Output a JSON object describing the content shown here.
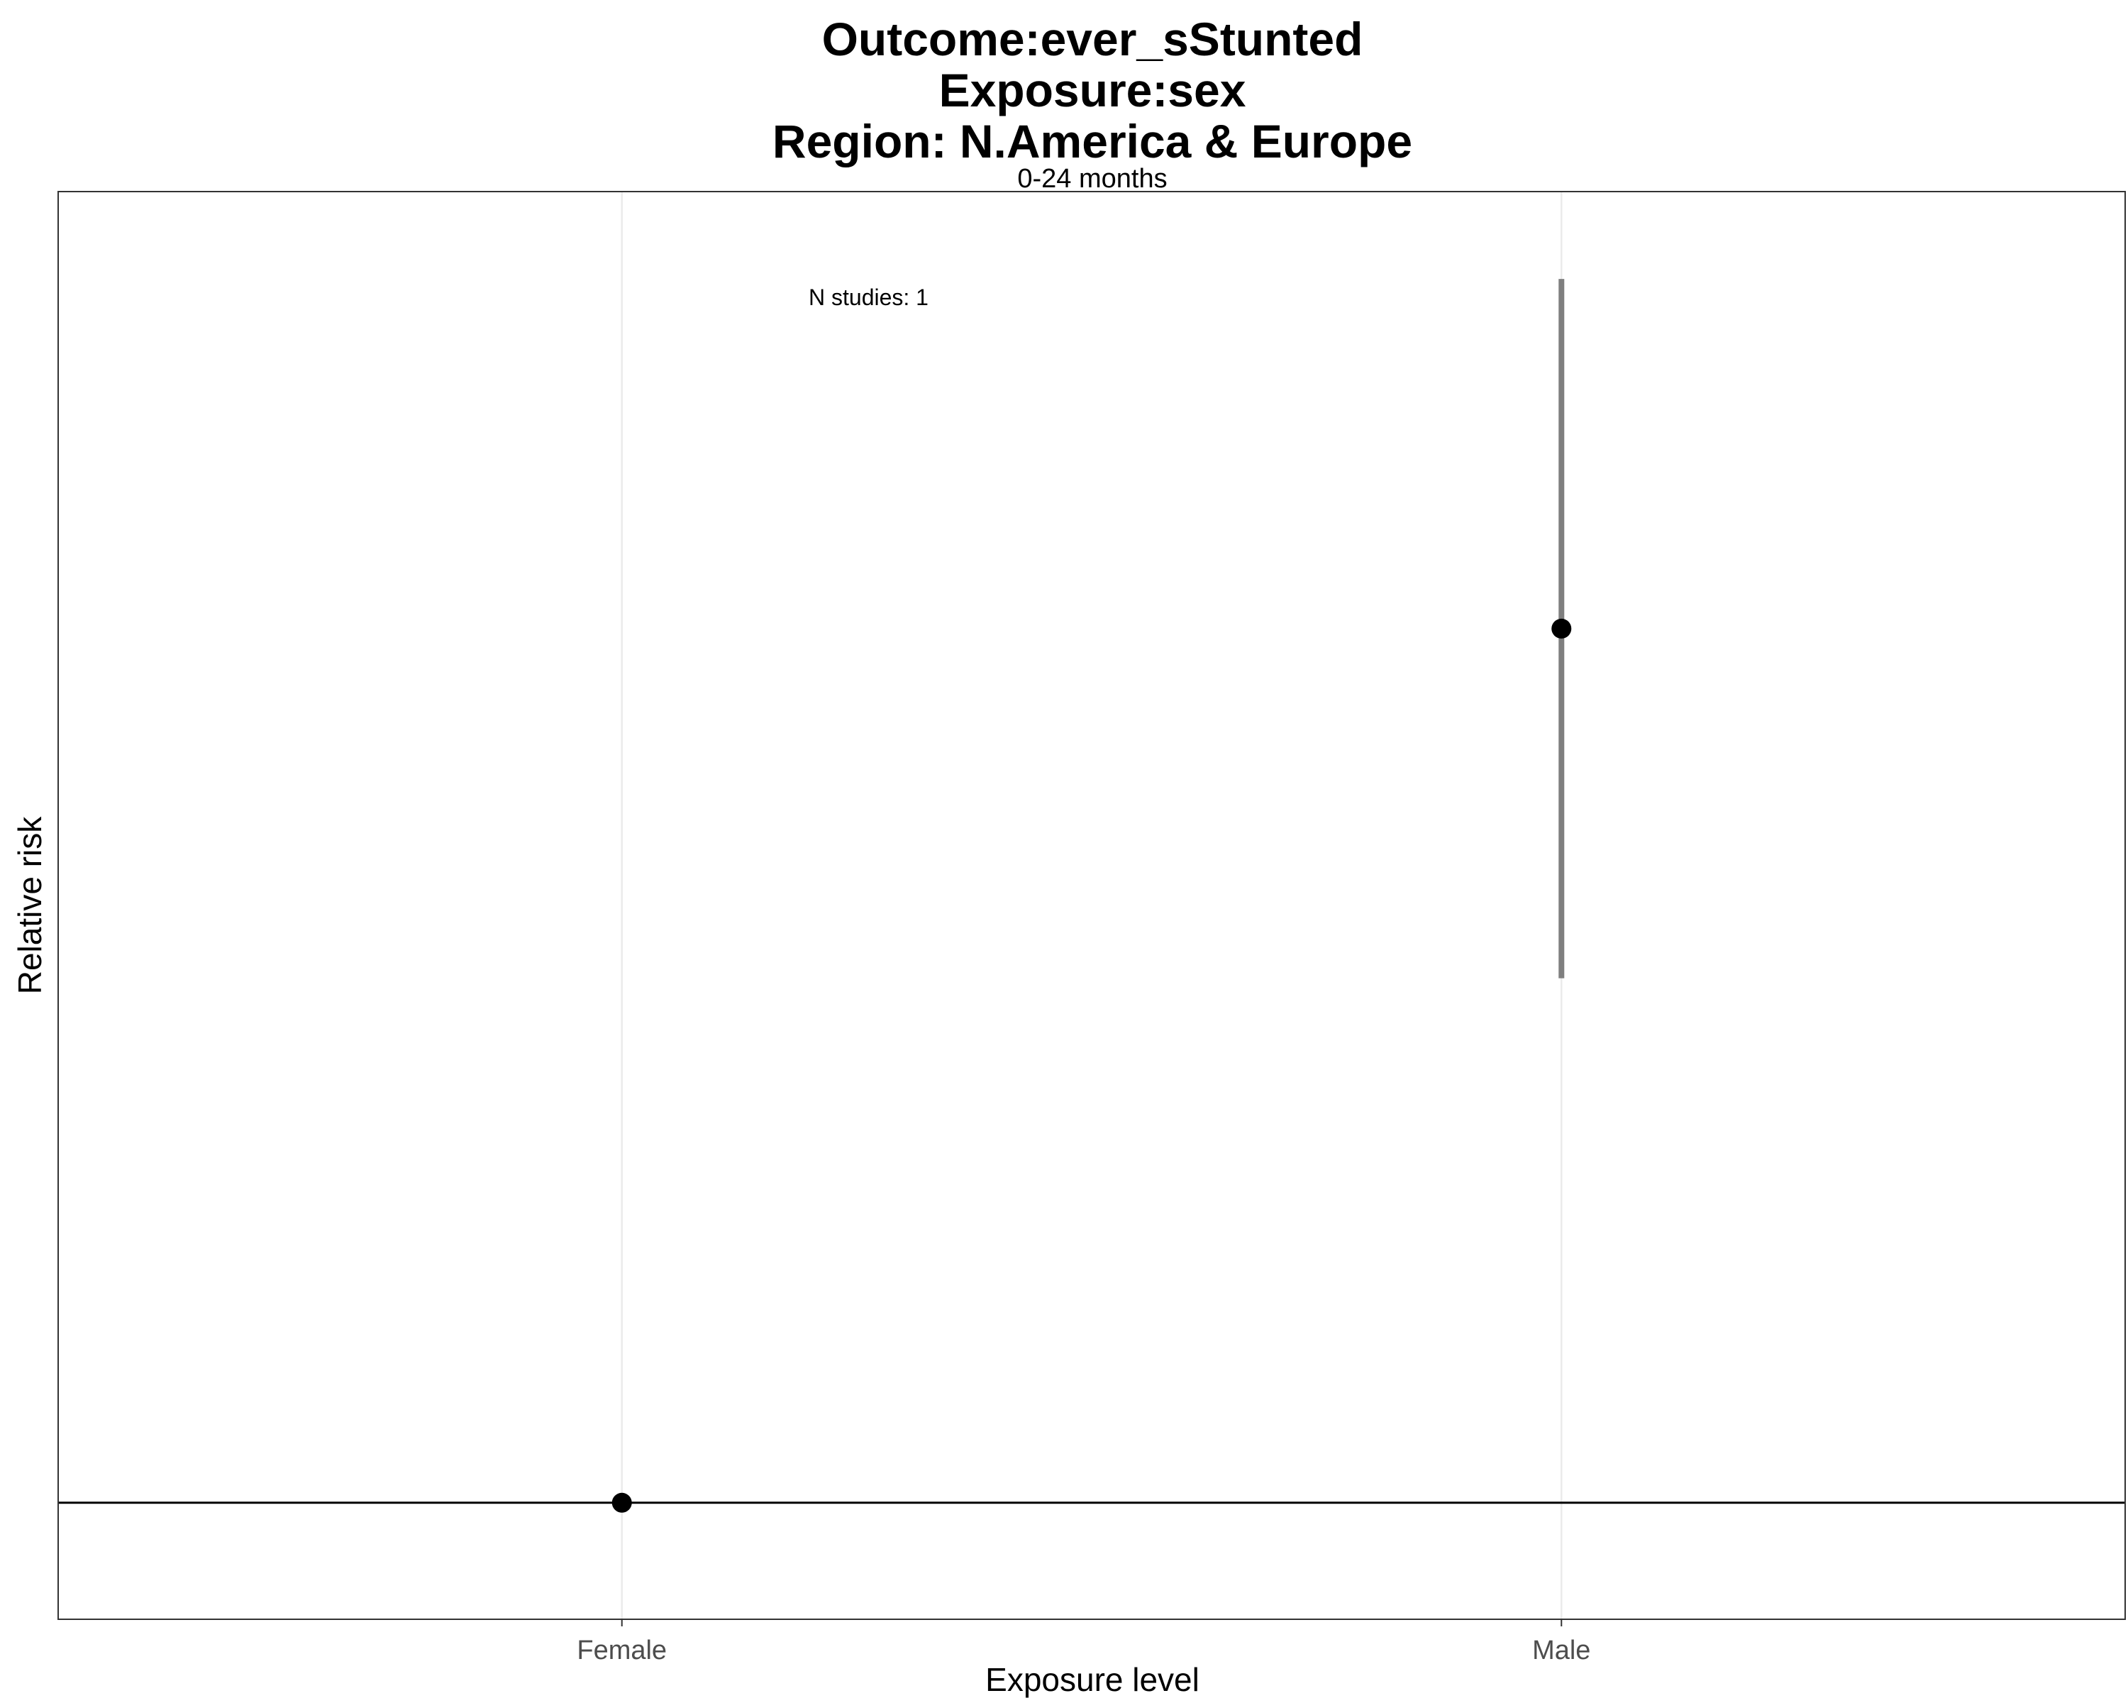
{
  "chart_data": {
    "type": "scatter",
    "title_lines": [
      "Outcome:ever_sStunted",
      "Exposure:sex",
      "Region: N.America & Europe"
    ],
    "facet_label": "0-24 months",
    "xlabel": "Exposure level",
    "ylabel": "Relative risk",
    "categories": [
      "Female",
      "Male"
    ],
    "points": [
      {
        "category": "Female",
        "rr": 1.0,
        "ci_lower": null,
        "ci_upper": null
      },
      {
        "category": "Male",
        "rr": 2.5,
        "ci_lower": 1.9,
        "ci_upper": 3.1
      }
    ],
    "reference_line": 1.0,
    "ylim": [
      0.8,
      3.25
    ],
    "annotation": "N studies: 1",
    "grid": "vertical-major-only",
    "colors": {
      "point": "#000000",
      "errorbar": "#7f7f7f",
      "refline": "#000000",
      "grid": "#ebebeb",
      "panel_border": "#333333"
    }
  }
}
